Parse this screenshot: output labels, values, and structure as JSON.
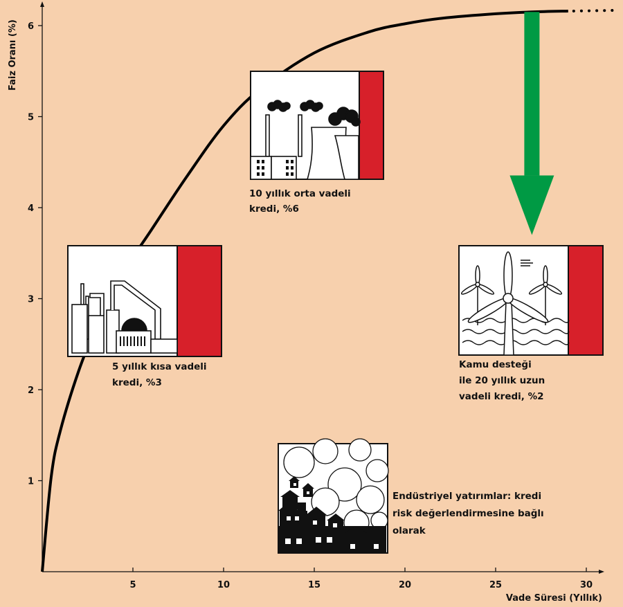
{
  "chart_data": {
    "type": "line",
    "xlabel": "Vade Süresi (Yıllık)",
    "ylabel": "Faiz Oranı (%)",
    "xlim": [
      0,
      31
    ],
    "ylim": [
      0,
      6.3
    ],
    "x_ticks": [
      5,
      10,
      15,
      20,
      25,
      30
    ],
    "y_ticks": [
      1,
      2,
      3,
      4,
      5,
      6
    ],
    "series": [
      {
        "x": [
          0,
          0.5,
          1,
          2,
          3,
          4,
          5,
          6,
          8,
          10,
          12,
          15,
          18,
          20,
          22,
          25,
          27,
          29
        ],
        "y": [
          0,
          1.05,
          1.55,
          2.2,
          2.7,
          3.1,
          3.45,
          3.75,
          4.35,
          4.9,
          5.3,
          5.7,
          5.93,
          6.02,
          6.08,
          6.13,
          6.15,
          6.16
        ],
        "continues_dotted_to_x": 31
      }
    ],
    "annotations": [
      {
        "lines": [
          "5 yıllık kısa vadeli",
          "kredi, %3"
        ],
        "icon": "factory-icon",
        "bar_color": "#d7202a"
      },
      {
        "lines": [
          "10 yıllık orta vadeli",
          "kredi, %6"
        ],
        "icon": "power-plant-icon",
        "bar_color": "#d7202a"
      },
      {
        "lines": [
          "Kamu desteği",
          "ile 20 yıllık uzun",
          "vadeli kredi, %2"
        ],
        "icon": "wind-turbine-icon",
        "bar_color": "#d7202a"
      },
      {
        "lines": [
          "Endüstriyel yatırımlar: kredi",
          "risk değerlendirmesine bağlı",
          "olarak"
        ],
        "icon": "polluted-town-icon"
      }
    ],
    "arrow": {
      "from_rate": 6.15,
      "to_rate": 3.7,
      "at_year": 27,
      "color": "#009a44",
      "icon": "arrow-down-icon"
    }
  },
  "colors": {
    "background": "#f7d0ad",
    "curve": "#000000",
    "panel_fill": "#ffffff"
  }
}
